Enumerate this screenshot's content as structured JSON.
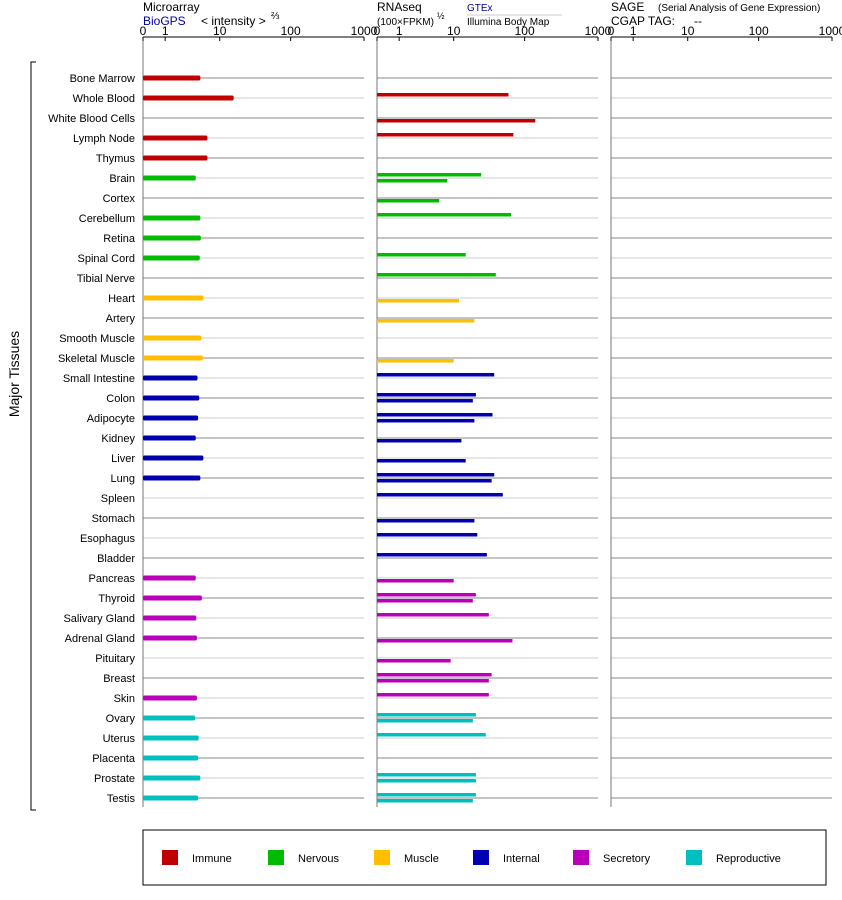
{
  "colors": {
    "Immune": "#c00000",
    "Nervous": "#00bb00",
    "Muscle": "#ffbf00",
    "Internal": "#0000b0",
    "Secretory": "#bb00bb",
    "Reproductive": "#00bfbf"
  },
  "headers": {
    "microarray": {
      "title": "Microarray",
      "source": "BioGPS",
      "scale": "< intensity >",
      "scale_exp": "⅔"
    },
    "rnaseq": {
      "title": "RNAseq",
      "scale": "(100×FPKM)",
      "scale_exp": "½",
      "source1": "GTEx",
      "source2": "Illumina Body Map"
    },
    "sage": {
      "title": "SAGE",
      "subtitle": "(Serial Analysis of Gene Expression)",
      "tag_label": "CGAP TAG:",
      "tag_value": "--"
    }
  },
  "y_group_label": "Major Tissues",
  "chart_data": {
    "type": "bar",
    "categories": [
      "Bone Marrow",
      "Whole Blood",
      "White Blood Cells",
      "Lymph Node",
      "Thymus",
      "Brain",
      "Cortex",
      "Cerebellum",
      "Retina",
      "Spinal Cord",
      "Tibial Nerve",
      "Heart",
      "Artery",
      "Smooth Muscle",
      "Skeletal Muscle",
      "Small Intestine",
      "Colon",
      "Adipocyte",
      "Kidney",
      "Liver",
      "Lung",
      "Spleen",
      "Stomach",
      "Esophagus",
      "Bladder",
      "Pancreas",
      "Thyroid",
      "Salivary Gland",
      "Adrenal Gland",
      "Pituitary",
      "Breast",
      "Skin",
      "Ovary",
      "Uterus",
      "Placenta",
      "Prostate",
      "Testis"
    ],
    "system": [
      "Immune",
      "Immune",
      "Immune",
      "Immune",
      "Immune",
      "Nervous",
      "Nervous",
      "Nervous",
      "Nervous",
      "Nervous",
      "Nervous",
      "Muscle",
      "Muscle",
      "Muscle",
      "Muscle",
      "Internal",
      "Internal",
      "Internal",
      "Internal",
      "Internal",
      "Internal",
      "Internal",
      "Internal",
      "Internal",
      "Internal",
      "Secretory",
      "Secretory",
      "Secretory",
      "Secretory",
      "Secretory",
      "Secretory",
      "Secretory",
      "Reproductive",
      "Reproductive",
      "Reproductive",
      "Reproductive",
      "Reproductive"
    ],
    "x_ticks": [
      "0",
      "1",
      "10",
      "100",
      "1000"
    ],
    "panels": [
      {
        "name": "Microarray",
        "series": [
          {
            "name": "BioGPS",
            "values": [
              5.0,
              16.0,
              null,
              6.5,
              6.5,
              4.2,
              null,
              5.0,
              5.1,
              4.9,
              null,
              5.6,
              null,
              5.2,
              5.5,
              4.5,
              4.8,
              4.6,
              4.2,
              5.6,
              5.0,
              null,
              null,
              null,
              null,
              4.2,
              5.3,
              4.3,
              4.4,
              null,
              null,
              4.4,
              4.1,
              4.7,
              4.6,
              5.0,
              4.6
            ]
          }
        ]
      },
      {
        "name": "RNAseq",
        "series": [
          {
            "name": "GTEx",
            "values": [
              null,
              60,
              null,
              70,
              null,
              25,
              null,
              65,
              null,
              15,
              40,
              null,
              null,
              null,
              null,
              38,
              21,
              36,
              null,
              null,
              38,
              50,
              null,
              22,
              30,
              null,
              21,
              32,
              null,
              null,
              35,
              32,
              21,
              29,
              null,
              21,
              21
            ]
          },
          {
            "name": "Illumina Body Map",
            "values": [
              null,
              null,
              140,
              null,
              null,
              8,
              6,
              null,
              null,
              null,
              null,
              12,
              20,
              null,
              10,
              null,
              19,
              20,
              13,
              15,
              35,
              null,
              20,
              null,
              null,
              10,
              19,
              null,
              68,
              9,
              32,
              null,
              19,
              null,
              null,
              21,
              19
            ]
          }
        ]
      },
      {
        "name": "SAGE",
        "series": []
      }
    ]
  },
  "legend": [
    "Immune",
    "Nervous",
    "Muscle",
    "Internal",
    "Secretory",
    "Reproductive"
  ]
}
